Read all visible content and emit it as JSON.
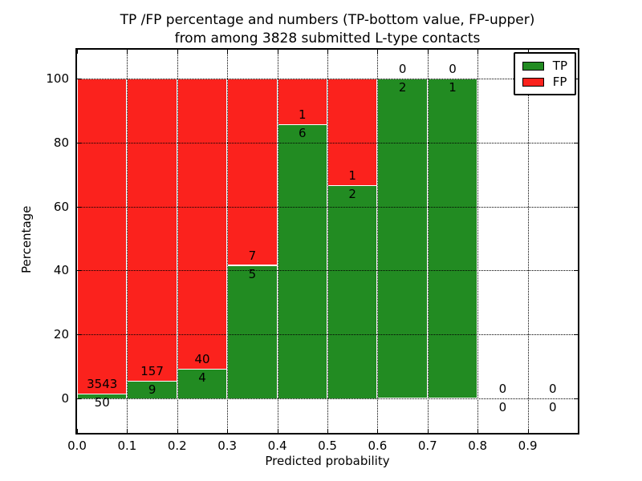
{
  "chart_data": {
    "type": "bar",
    "subtype": "stacked-percentage",
    "title_line1": "TP /FP percentage and numbers (TP-bottom value, FP-upper)",
    "title_line2": "from among 3828 submitted L-type contacts",
    "xlabel": "Predicted probability",
    "ylabel": "Percentage",
    "total_submitted": 3828,
    "xlim": [
      0.0,
      1.0
    ],
    "ylim": [
      -10.9,
      109.1
    ],
    "grid": true,
    "x_ticks": [
      {
        "v": 0.0,
        "label": "0.0"
      },
      {
        "v": 0.1,
        "label": "0.1"
      },
      {
        "v": 0.2,
        "label": "0.2"
      },
      {
        "v": 0.3,
        "label": "0.3"
      },
      {
        "v": 0.4,
        "label": "0.4"
      },
      {
        "v": 0.5,
        "label": "0.5"
      },
      {
        "v": 0.6,
        "label": "0.6"
      },
      {
        "v": 0.7,
        "label": "0.7"
      },
      {
        "v": 0.8,
        "label": "0.8"
      },
      {
        "v": 0.9,
        "label": "0.9"
      }
    ],
    "y_ticks": [
      {
        "v": 0,
        "label": "0"
      },
      {
        "v": 20,
        "label": "20"
      },
      {
        "v": 40,
        "label": "40"
      },
      {
        "v": 60,
        "label": "60"
      },
      {
        "v": 80,
        "label": "80"
      },
      {
        "v": 100,
        "label": "100"
      }
    ],
    "legend": {
      "position": "upper right",
      "entries": [
        {
          "label": "TP",
          "color": "#228b22"
        },
        {
          "label": "FP",
          "color": "#fb221d"
        }
      ]
    },
    "colors": {
      "tp": "#228b22",
      "fp": "#fb221d",
      "bar_edge": "#ffffff",
      "grid": "#000000"
    },
    "bins": [
      {
        "range": [
          0.0,
          0.1
        ],
        "tp": 50,
        "fp": 3543,
        "tp_pct": 1.39,
        "total_pct": 100
      },
      {
        "range": [
          0.1,
          0.2
        ],
        "tp": 9,
        "fp": 157,
        "tp_pct": 5.42,
        "total_pct": 100
      },
      {
        "range": [
          0.2,
          0.3
        ],
        "tp": 4,
        "fp": 40,
        "tp_pct": 9.09,
        "total_pct": 100
      },
      {
        "range": [
          0.3,
          0.4
        ],
        "tp": 5,
        "fp": 7,
        "tp_pct": 41.67,
        "total_pct": 100
      },
      {
        "range": [
          0.4,
          0.5
        ],
        "tp": 6,
        "fp": 1,
        "tp_pct": 85.71,
        "total_pct": 100
      },
      {
        "range": [
          0.5,
          0.6
        ],
        "tp": 2,
        "fp": 1,
        "tp_pct": 66.67,
        "total_pct": 100
      },
      {
        "range": [
          0.6,
          0.7
        ],
        "tp": 2,
        "fp": 0,
        "tp_pct": 100,
        "total_pct": 100
      },
      {
        "range": [
          0.7,
          0.8
        ],
        "tp": 1,
        "fp": 0,
        "tp_pct": 100,
        "total_pct": 100
      },
      {
        "range": [
          0.8,
          0.9
        ],
        "tp": 0,
        "fp": 0,
        "tp_pct": 0,
        "total_pct": 0
      },
      {
        "range": [
          0.9,
          1.0
        ],
        "tp": 0,
        "fp": 0,
        "tp_pct": 0,
        "total_pct": 0
      }
    ]
  }
}
